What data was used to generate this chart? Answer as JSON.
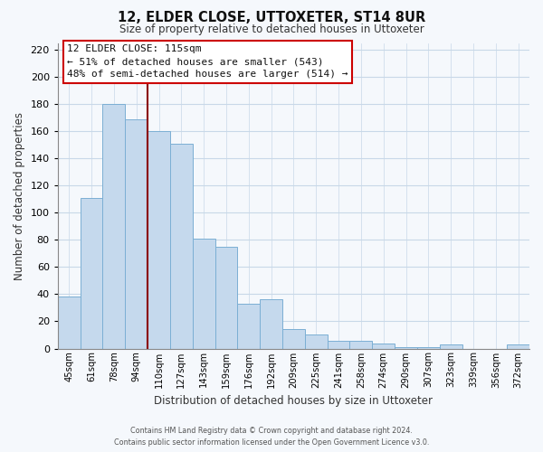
{
  "title": "12, ELDER CLOSE, UTTOXETER, ST14 8UR",
  "subtitle": "Size of property relative to detached houses in Uttoxeter",
  "xlabel": "Distribution of detached houses by size in Uttoxeter",
  "ylabel": "Number of detached properties",
  "categories": [
    "45sqm",
    "61sqm",
    "78sqm",
    "94sqm",
    "110sqm",
    "127sqm",
    "143sqm",
    "159sqm",
    "176sqm",
    "192sqm",
    "209sqm",
    "225sqm",
    "241sqm",
    "258sqm",
    "274sqm",
    "290sqm",
    "307sqm",
    "323sqm",
    "339sqm",
    "356sqm",
    "372sqm"
  ],
  "values": [
    38,
    111,
    180,
    169,
    160,
    151,
    81,
    75,
    33,
    36,
    14,
    10,
    6,
    6,
    4,
    1,
    1,
    3,
    0,
    0,
    3
  ],
  "bar_color": "#c5d9ed",
  "bar_edge_color": "#7bafd4",
  "marker_line_index": 4,
  "marker_line_color": "#8b0000",
  "ylim": [
    0,
    225
  ],
  "yticks": [
    0,
    20,
    40,
    60,
    80,
    100,
    120,
    140,
    160,
    180,
    200,
    220
  ],
  "annotation_title": "12 ELDER CLOSE: 115sqm",
  "annotation_line1": "← 51% of detached houses are smaller (543)",
  "annotation_line2": "48% of semi-detached houses are larger (514) →",
  "annotation_box_color": "#ffffff",
  "annotation_box_edge": "#cc0000",
  "footer1": "Contains HM Land Registry data © Crown copyright and database right 2024.",
  "footer2": "Contains public sector information licensed under the Open Government Licence v3.0.",
  "background_color": "#f5f8fc",
  "grid_color": "#c8d8e8"
}
